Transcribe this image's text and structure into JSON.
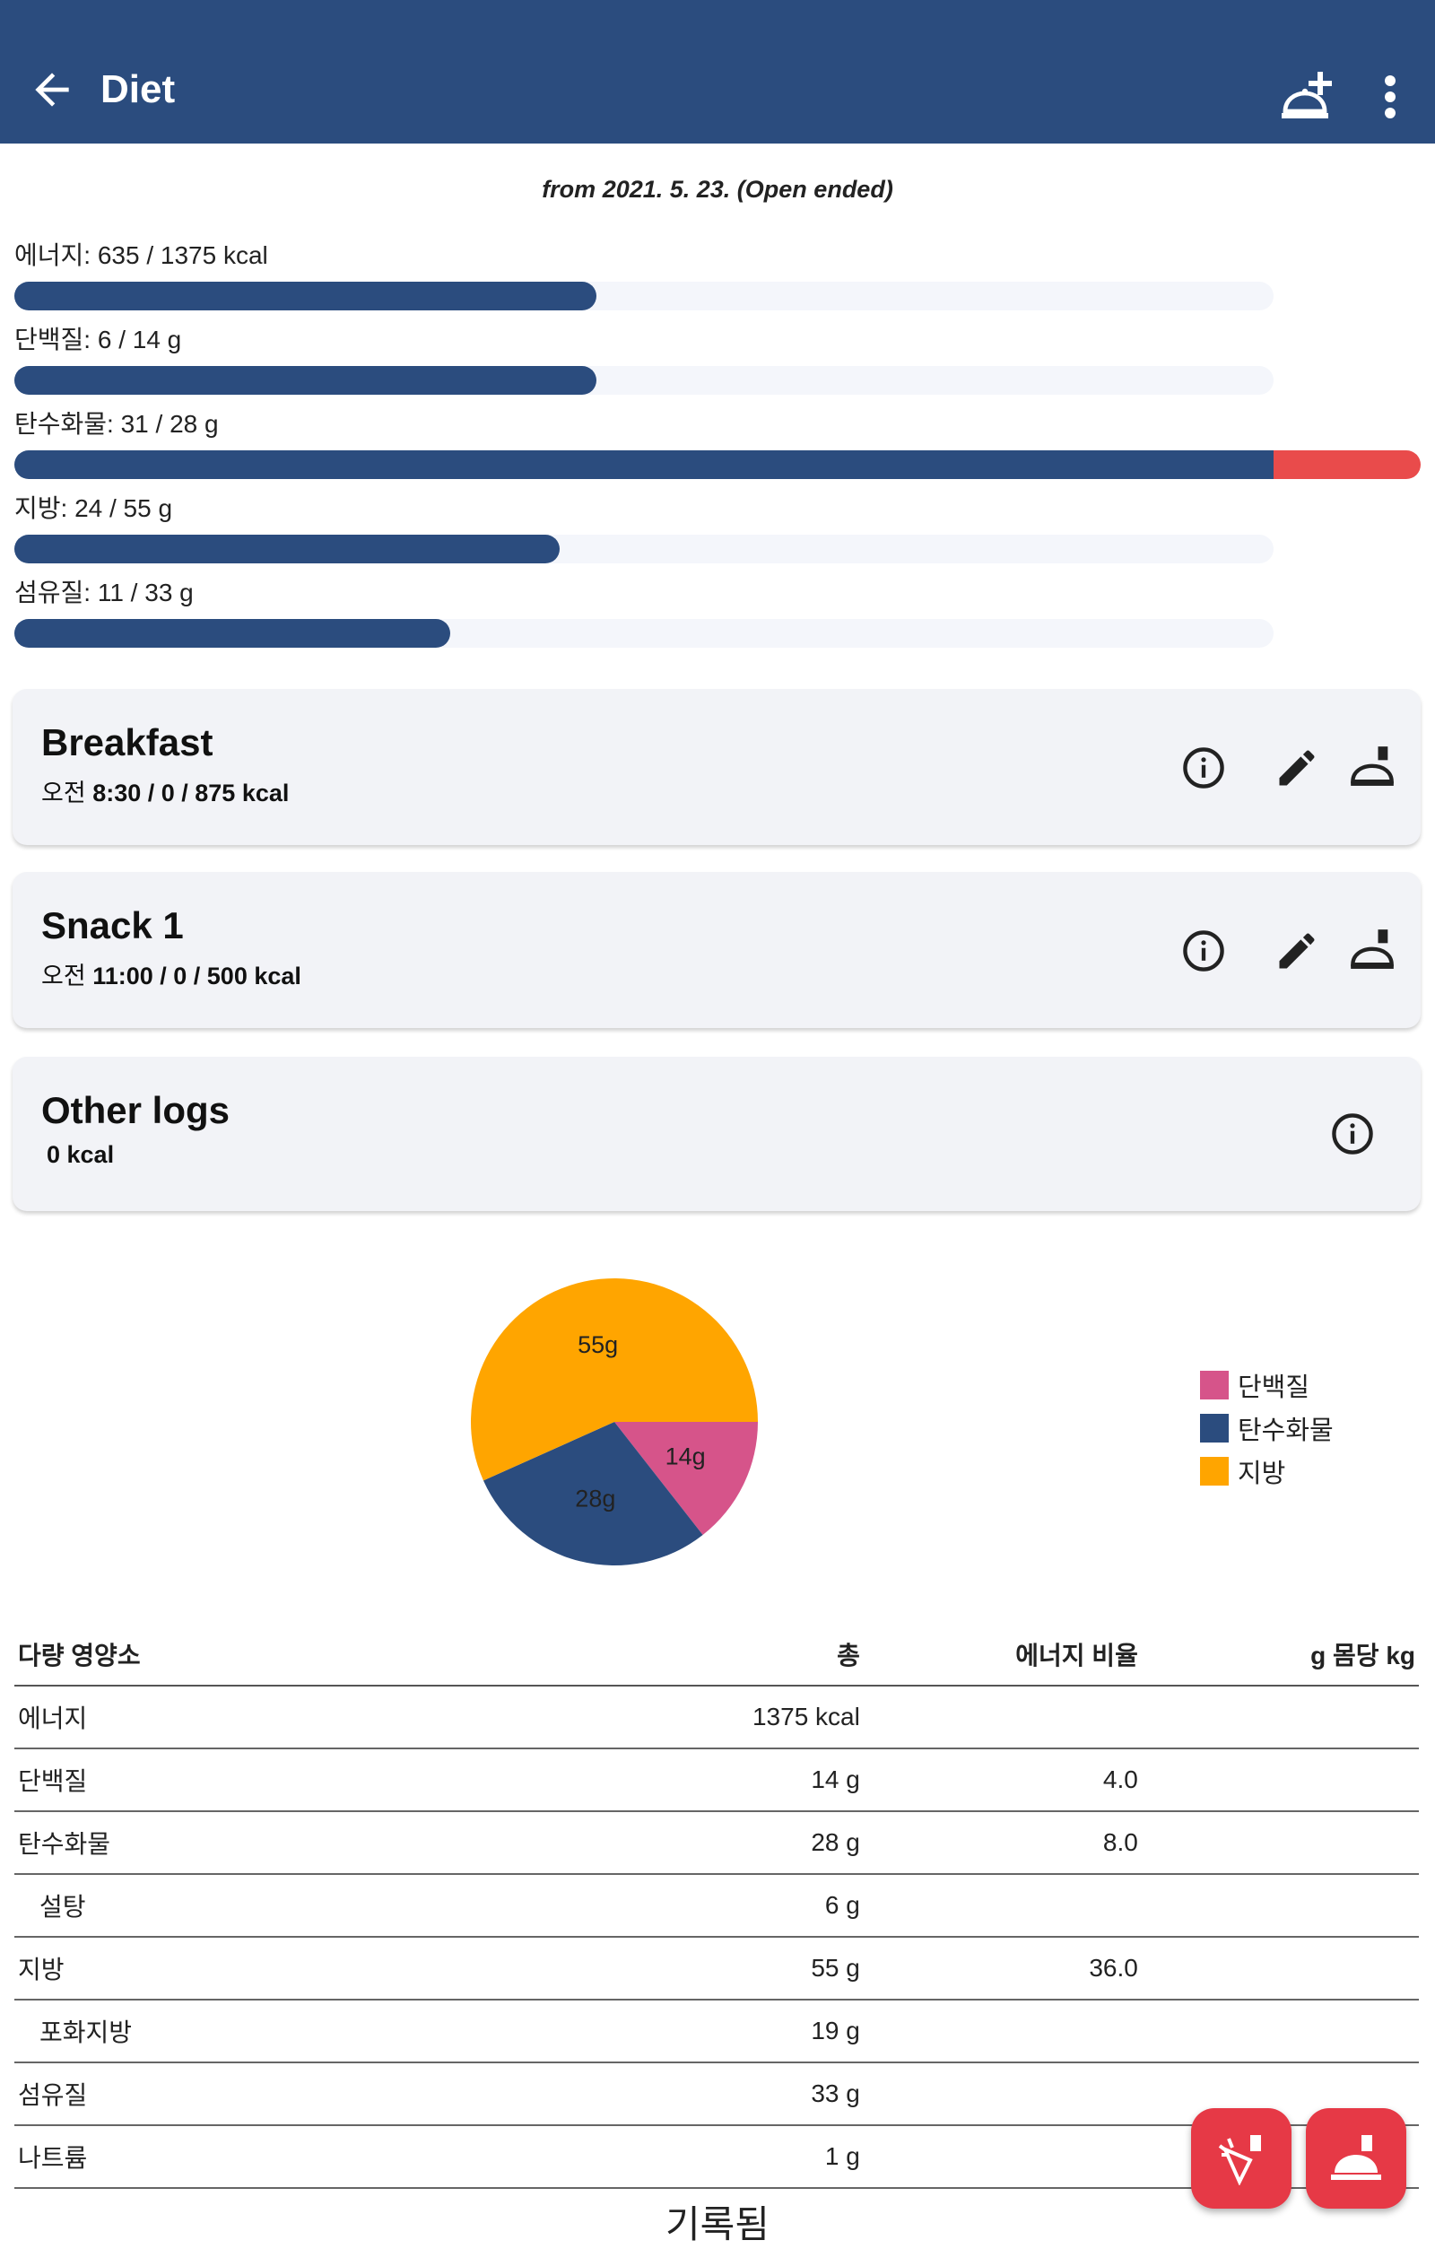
{
  "appbar": {
    "title": "Diet",
    "back_icon": "arrow-left-icon",
    "add_meal_icon": "meal-add-icon",
    "menu_icon": "more-vert-icon"
  },
  "subtitle": "from 2021. 5. 23. (Open ended)",
  "nutrients": [
    {
      "label": "에너지: 635 / 1375 kcal",
      "progress": 0.462
    },
    {
      "label": "단백질: 6 / 14 g",
      "progress": 0.462
    },
    {
      "label": "탄수화물: 31 / 28 g",
      "progress": 1.0,
      "over": true
    },
    {
      "label": "지방: 24 / 55 g",
      "progress": 0.436
    },
    {
      "label": "섬유질: 11 / 33 g",
      "progress": 0.345
    }
  ],
  "meals": [
    {
      "title": "Breakfast",
      "time": "오전",
      "detail": "8:30 /  0 / 875 kcal"
    },
    {
      "title": "Snack 1",
      "time": "오전",
      "detail": "11:00 /  0 / 500 kcal"
    }
  ],
  "other_logs": {
    "title": "Other logs",
    "detail": "0 kcal"
  },
  "chart_data": {
    "type": "pie",
    "slices": [
      {
        "name": "단백질",
        "value": 14,
        "label": "14g",
        "color": "#d6548a"
      },
      {
        "name": "탄수화물",
        "value": 28,
        "label": "28g",
        "color": "#2b4c7e"
      },
      {
        "name": "지방",
        "value": 55,
        "label": "55g",
        "color": "#ffa500"
      }
    ]
  },
  "legend": [
    {
      "label": "단백질",
      "color": "#d6548a"
    },
    {
      "label": "탄수화물",
      "color": "#2b4c7e"
    },
    {
      "label": "지방",
      "color": "#ffa500"
    }
  ],
  "table": {
    "headers": [
      "다량 영양소",
      "총",
      "에너지 비율",
      "g 몸당 kg"
    ],
    "rows": [
      {
        "name": "에너지",
        "total": "1375 kcal",
        "ratio": "",
        "perkg": ""
      },
      {
        "name": "단백질",
        "total": "14 g",
        "ratio": "4.0",
        "perkg": ""
      },
      {
        "name": "탄수화물",
        "total": "28 g",
        "ratio": "8.0",
        "perkg": ""
      },
      {
        "name": "설탕",
        "total": "6 g",
        "ratio": "",
        "perkg": "",
        "indent": true
      },
      {
        "name": "지방",
        "total": "55 g",
        "ratio": "36.0",
        "perkg": ""
      },
      {
        "name": "포화지방",
        "total": "19 g",
        "ratio": "",
        "perkg": "",
        "indent": true
      },
      {
        "name": "섬유질",
        "total": "33 g",
        "ratio": "",
        "perkg": ""
      },
      {
        "name": "나트륨",
        "total": "1 g",
        "ratio": "",
        "perkg": ""
      }
    ]
  },
  "recorded": "기록됨",
  "colors": {
    "primary": "#2b4c7e",
    "over": "#e94b4b",
    "fab": "#e63946"
  }
}
